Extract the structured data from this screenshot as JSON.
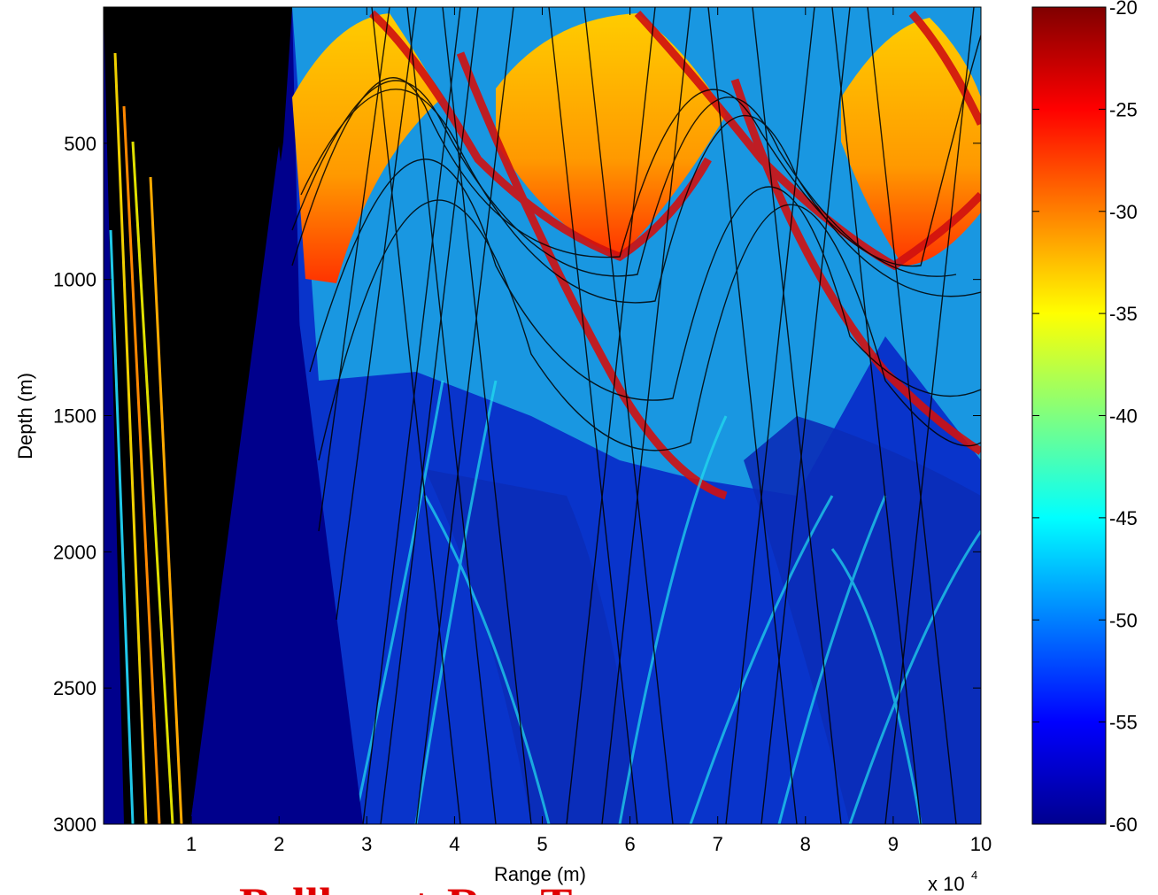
{
  "chart_data": {
    "type": "heatmap",
    "xlabel": "Range (m)",
    "ylabel": "Depth (m)",
    "x_multiplier": "x 10",
    "x_multiplier_exp": "4",
    "xlim": [
      0,
      10
    ],
    "ylim": [
      0,
      3000
    ],
    "y_reversed": true,
    "x_ticks": [
      "1",
      "2",
      "3",
      "4",
      "5",
      "6",
      "7",
      "8",
      "9",
      "10"
    ],
    "y_ticks": [
      "500",
      "1000",
      "1500",
      "2000",
      "2500",
      "3000"
    ],
    "colorbar": {
      "range": [
        -60,
        -20
      ],
      "ticks": [
        "-20",
        "-25",
        "-30",
        "-35",
        "-40",
        "-45",
        "-50",
        "-55",
        "-60"
      ],
      "colormap": "jet"
    },
    "colors": {
      "background": "#00008c",
      "high": "#800000",
      "ray_lines": "#000000"
    }
  },
  "watermark": "Bellhop + Ray Trace"
}
